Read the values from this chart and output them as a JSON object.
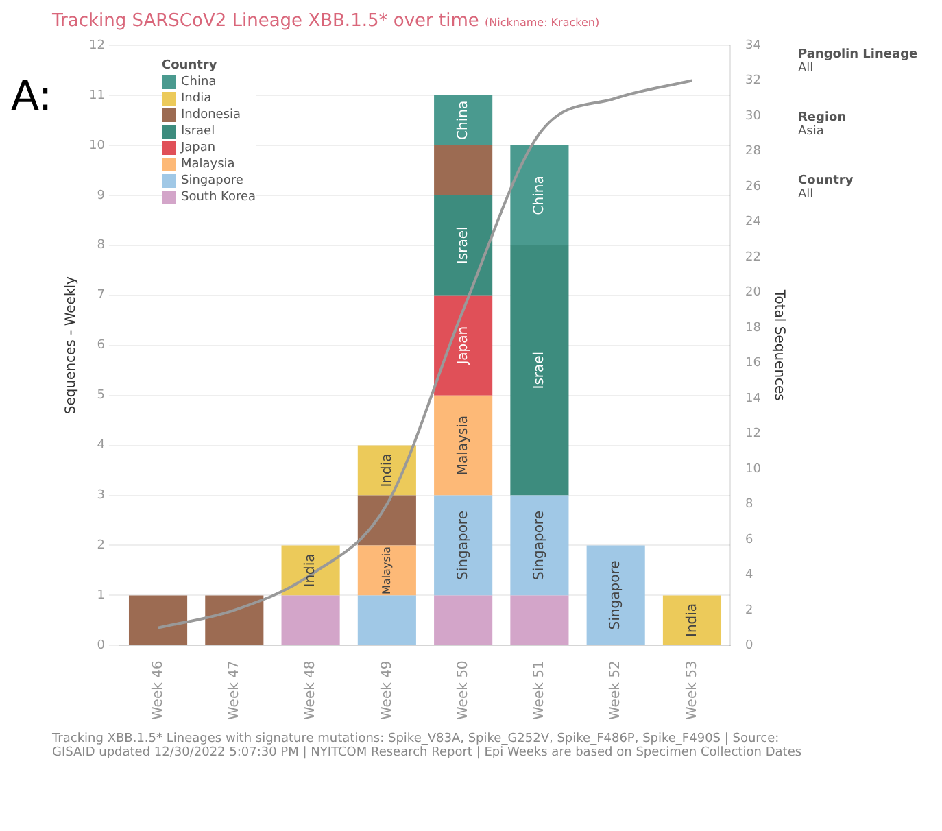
{
  "chart_data": {
    "type": "bar",
    "title": "Tracking SARSCoV2 Lineage XBB.1.5* over time",
    "subtitle": "(Nickname: Kracken)",
    "xlabel": null,
    "ylabel": "Sequences - Weekly",
    "y2label": "Total Sequences",
    "legend_title": "Country",
    "categories": [
      "Week 46",
      "Week 47",
      "Week 48",
      "Week 49",
      "Week 50",
      "Week 51",
      "Week 52",
      "Week 53"
    ],
    "stacked": true,
    "legend": "top left",
    "grid": "y",
    "ylim": [
      0,
      12
    ],
    "yticks": [
      0,
      1,
      2,
      3,
      4,
      5,
      6,
      7,
      8,
      9,
      10,
      11,
      12
    ],
    "y2lim": [
      0,
      34
    ],
    "y2ticks": [
      0,
      2,
      4,
      6,
      8,
      10,
      12,
      14,
      16,
      18,
      20,
      22,
      24,
      26,
      28,
      30,
      32,
      34
    ],
    "series": [
      {
        "name": "South Korea",
        "color": "#d3a5c9",
        "values": [
          null,
          null,
          1,
          null,
          1,
          1,
          null,
          null
        ]
      },
      {
        "name": "Singapore",
        "color": "#a0c8e6",
        "values": [
          null,
          null,
          null,
          1,
          2,
          2,
          2,
          null
        ]
      },
      {
        "name": "Malaysia",
        "color": "#fdb977",
        "values": [
          null,
          null,
          null,
          1,
          2,
          null,
          null,
          null
        ]
      },
      {
        "name": "Japan",
        "color": "#e05058",
        "values": [
          null,
          null,
          null,
          null,
          2,
          null,
          null,
          null
        ]
      },
      {
        "name": "Israel",
        "color": "#3d8c7e",
        "values": [
          null,
          null,
          null,
          null,
          2,
          5,
          null,
          null
        ]
      },
      {
        "name": "Indonesia",
        "color": "#9c6b52",
        "values": [
          1,
          1,
          null,
          1,
          1,
          null,
          null,
          null
        ]
      },
      {
        "name": "India",
        "color": "#ecca5a",
        "values": [
          null,
          null,
          1,
          1,
          null,
          null,
          null,
          1
        ]
      },
      {
        "name": "China",
        "color": "#4a9a8f",
        "values": [
          null,
          null,
          null,
          null,
          1,
          2,
          null,
          null
        ]
      },
      {
        "type": "line",
        "axis": "y2",
        "color": "#999999",
        "marker": "none",
        "values": [
          1,
          2,
          4,
          8,
          19,
          29,
          31,
          32
        ]
      }
    ],
    "annotations": [
      "A:",
      "Pangolin Lineage",
      "All",
      "Region",
      "Asia",
      "Country",
      "All",
      "Tracking XBB.1.5* Lineages with signature mutations: Spike_V83A, Spike_G252V, Spike_F486P, Spike_F490S | Source: GISAID updated 12/30/2022 5:07:30 PM | NYITCOM Research Report | Epi Weeks are based on Specimen Collection Dates"
    ]
  }
}
